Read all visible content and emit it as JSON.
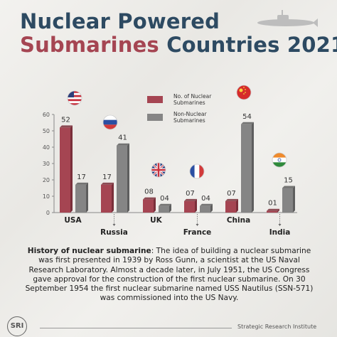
{
  "header": {
    "title_line1": "Nuclear Powered",
    "title_line2_a": "Submarines",
    "title_line2_b": "Countries 2021"
  },
  "chart_data": {
    "type": "bar",
    "title": "Nuclear Powered Submarines Countries 2021",
    "categories": [
      "USA",
      "Russia",
      "UK",
      "France",
      "China",
      "India"
    ],
    "series": [
      {
        "name": "No. of Nuclear Submarines",
        "color": "#a54552",
        "values": [
          52,
          17,
          8,
          7,
          7,
          1
        ]
      },
      {
        "name": "Non-Nuclear Submarines",
        "color": "#858585",
        "values": [
          17,
          41,
          4,
          4,
          54,
          15
        ]
      }
    ],
    "value_labels": [
      [
        "52",
        "17",
        "08",
        "07",
        "07",
        "01"
      ],
      [
        "17",
        "41",
        "04",
        "04",
        "54",
        "15"
      ]
    ],
    "ylim": [
      0,
      60
    ],
    "yticks": [
      0,
      10,
      20,
      30,
      40,
      50,
      60
    ],
    "legend_position": "top-center",
    "flags": [
      "usa-flag",
      "russia-flag",
      "uk-flag",
      "france-flag",
      "china-flag",
      "india-flag"
    ]
  },
  "story": {
    "heading": "History of nuclear submarine",
    "body": ": The idea of building a nuclear submarine was first presented in 1939 by Ross Gunn, a scientist at the US Naval Research Laboratory. Almost a decade later, in July 1951, the US Congress gave approval for the construction of the first nuclear submarine. On 30 September 1954 the first nuclear submarine named USS Nautilus (SSN-571) was commissioned into the US Navy."
  },
  "footer": {
    "logo_text": "SRI",
    "org_name": "Strategic Research Institute"
  },
  "icons": {
    "header": "submarine-icon",
    "logo": "sri-logo-icon"
  }
}
